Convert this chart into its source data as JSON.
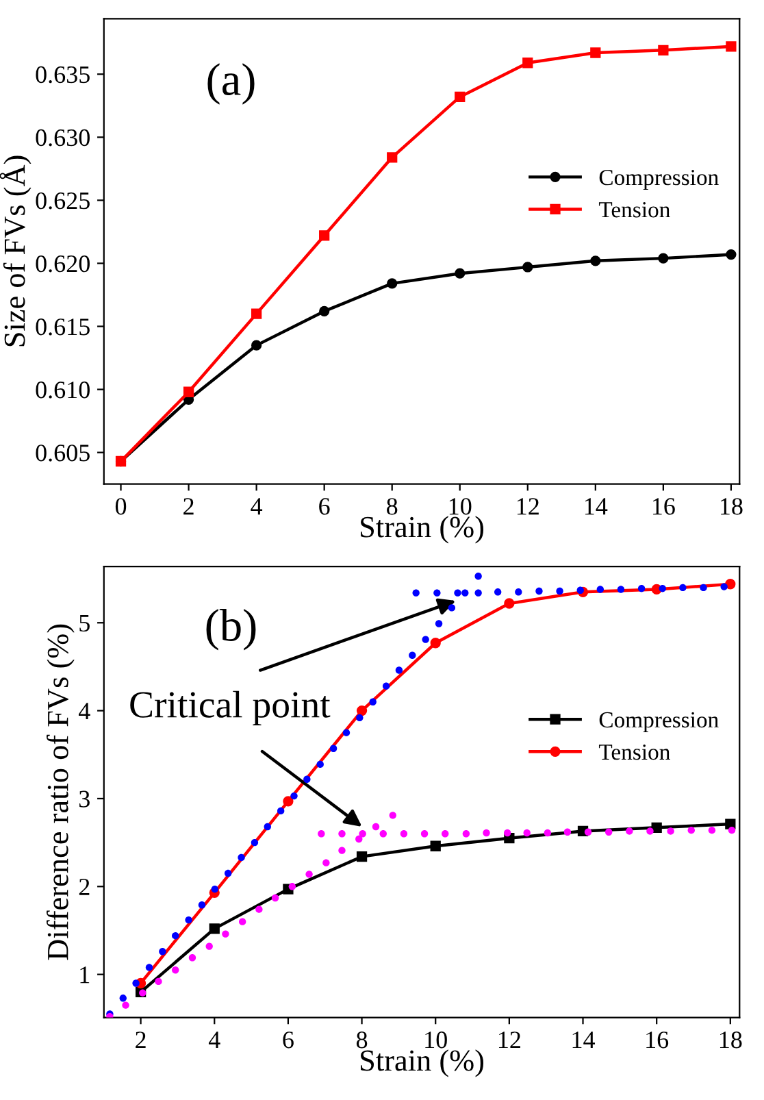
{
  "chart_data": [
    {
      "type": "line",
      "xlabel": "Strain (%)",
      "ylabel": "Size of FVs (Å)",
      "x": [
        0,
        2,
        4,
        6,
        8,
        10,
        12,
        14,
        16,
        18
      ],
      "series": [
        {
          "name": "Compression",
          "color": "#000000",
          "marker": "circle",
          "values": [
            0.6043,
            0.6092,
            0.6135,
            0.6162,
            0.6184,
            0.6192,
            0.6197,
            0.6202,
            0.6204,
            0.6207
          ]
        },
        {
          "name": "Tension",
          "color": "#ff0000",
          "marker": "square",
          "values": [
            0.6043,
            0.6098,
            0.616,
            0.6222,
            0.6284,
            0.6332,
            0.6359,
            0.6367,
            0.6369,
            0.6372
          ]
        }
      ],
      "xlim": [
        -0.5,
        18.25
      ],
      "ylim": [
        0.6025,
        0.6394
      ],
      "xticks": [
        0,
        2,
        4,
        6,
        8,
        10,
        12,
        14,
        16,
        18
      ],
      "yticks": [
        {
          "value": 0.605,
          "label": "0.605"
        },
        {
          "value": 0.61,
          "label": "0.610"
        },
        {
          "value": 0.615,
          "label": "0.615"
        },
        {
          "value": 0.62,
          "label": "0.620"
        },
        {
          "value": 0.625,
          "label": "0.625"
        },
        {
          "value": 0.63,
          "label": "0.630"
        },
        {
          "value": 0.635,
          "label": "0.635"
        }
      ],
      "annotations": [
        "(a)"
      ],
      "legend": "right",
      "grid": false
    },
    {
      "type": "line",
      "xlabel": "Strain (%)",
      "ylabel": "Difference ratio of FVs (%)",
      "x": [
        2,
        4,
        6,
        8,
        10,
        12,
        14,
        16,
        18
      ],
      "series": [
        {
          "name": "Compression",
          "color": "#000000",
          "marker": "square",
          "values": [
            0.8,
            1.52,
            1.97,
            2.34,
            2.46,
            2.55,
            2.63,
            2.67,
            2.71
          ]
        },
        {
          "name": "Tension",
          "color": "#ff0000",
          "marker": "circle",
          "values": [
            0.9,
            1.93,
            2.97,
            4.0,
            4.77,
            5.22,
            5.35,
            5.38,
            5.44
          ]
        },
        {
          "type": "scatter",
          "color": "#0000ff",
          "marker": "circle",
          "x": [
            1.16,
            1.52,
            1.87,
            2.23,
            2.59,
            2.94,
            3.3,
            3.66,
            4.01,
            4.37,
            4.73,
            5.09,
            5.44,
            5.8,
            6.16,
            6.51,
            6.87,
            7.23,
            7.58,
            7.94,
            8.3,
            8.66,
            9.01,
            9.37,
            9.73,
            10.09,
            10.44,
            9.47,
            10.04,
            10.6,
            10.8,
            11.16,
            11.16,
            11.69,
            12.25,
            12.81,
            13.37,
            13.93,
            14.47,
            15.03,
            15.59,
            16.16,
            16.71,
            17.27,
            17.83
          ],
          "values": [
            0.55,
            0.73,
            0.9,
            1.08,
            1.26,
            1.44,
            1.62,
            1.79,
            1.97,
            2.15,
            2.33,
            2.5,
            2.68,
            2.86,
            3.03,
            3.22,
            3.39,
            3.57,
            3.75,
            3.92,
            4.1,
            4.28,
            4.46,
            4.63,
            4.81,
            4.99,
            5.17,
            5.34,
            5.34,
            5.34,
            5.34,
            5.34,
            5.53,
            5.35,
            5.35,
            5.36,
            5.36,
            5.37,
            5.38,
            5.38,
            5.39,
            5.39,
            5.4,
            5.4,
            5.41
          ]
        },
        {
          "type": "scatter",
          "color": "#ff00ff",
          "marker": "circle",
          "x": [
            1.16,
            1.59,
            2.05,
            2.48,
            2.94,
            3.4,
            3.86,
            4.3,
            4.76,
            5.21,
            5.65,
            6.11,
            6.57,
            7.03,
            7.46,
            7.92,
            6.9,
            7.46,
            8.02,
            8.38,
            8.58,
            8.84,
            9.14,
            9.7,
            10.26,
            10.83,
            11.38,
            11.95,
            12.48,
            13.04,
            13.58,
            14.14,
            14.7,
            15.26,
            15.82,
            16.38,
            16.94,
            17.5,
            18.04
          ],
          "values": [
            0.52,
            0.65,
            0.79,
            0.92,
            1.05,
            1.19,
            1.32,
            1.46,
            1.6,
            1.74,
            1.87,
            2.0,
            2.14,
            2.27,
            2.41,
            2.54,
            2.6,
            2.6,
            2.6,
            2.68,
            2.6,
            2.81,
            2.6,
            2.6,
            2.6,
            2.6,
            2.61,
            2.61,
            2.61,
            2.61,
            2.62,
            2.62,
            2.62,
            2.63,
            2.63,
            2.63,
            2.64,
            2.64,
            2.64
          ]
        }
      ],
      "xlim": [
        1.0,
        18.25
      ],
      "ylim": [
        0.51,
        5.64
      ],
      "xticks": [
        2,
        4,
        6,
        8,
        10,
        12,
        14,
        16,
        18
      ],
      "yticks": [
        1,
        2,
        3,
        4,
        5
      ],
      "annotations": [
        "(b)",
        {
          "text": "Critical point",
          "x": 10.55,
          "y": 5.25
        }
      ],
      "legend": "right",
      "grid": false
    }
  ]
}
